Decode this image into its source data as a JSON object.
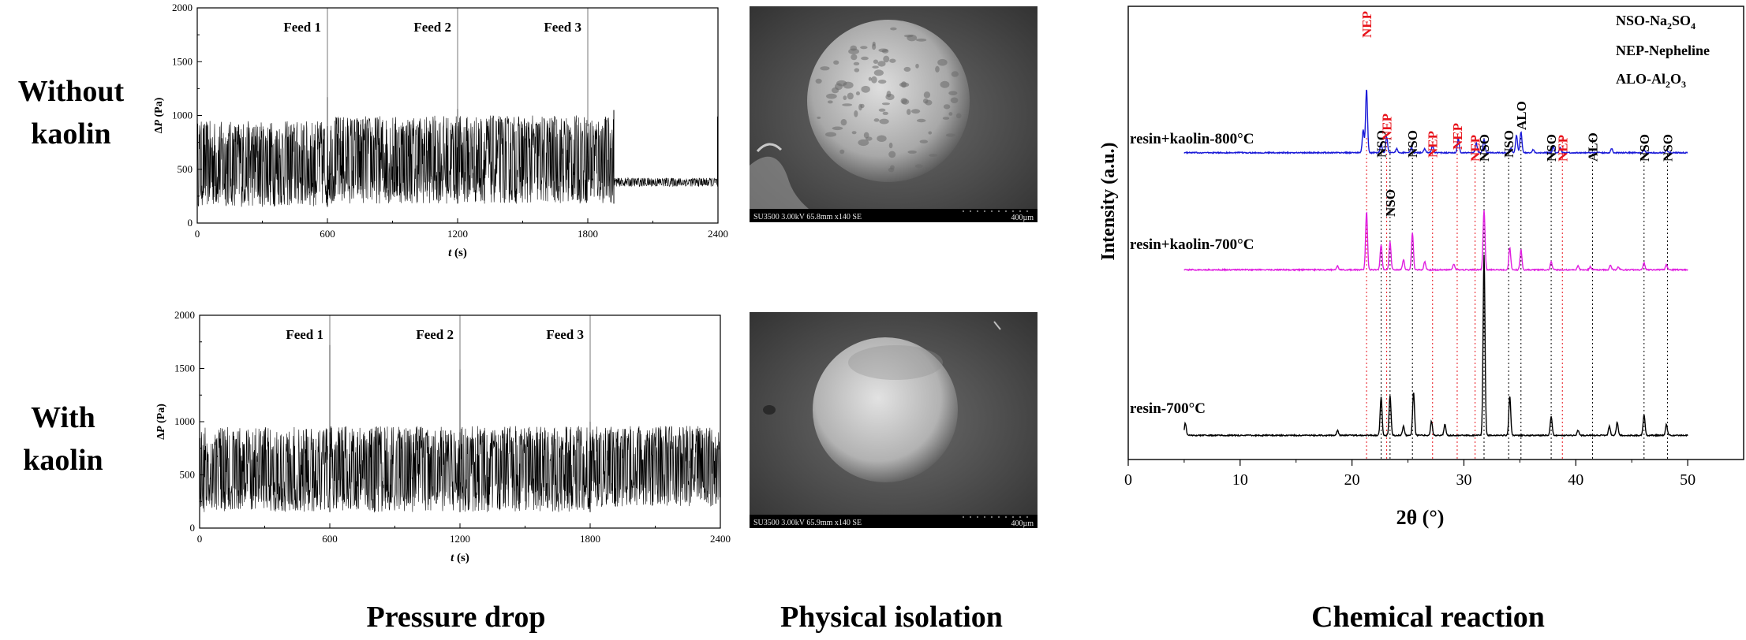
{
  "row_labels": {
    "top": [
      "Without",
      "kaolin"
    ],
    "bottom": [
      "With",
      "kaolin"
    ]
  },
  "section_titles": {
    "pressure": "Pressure drop",
    "physical": "Physical isolation",
    "chemical": "Chemical reaction"
  },
  "sem_images": {
    "top": {
      "caption": "SU3500 3.00kV 65.8mm x140 SE",
      "scale_label": "400µm"
    },
    "bottom": {
      "caption": "SU3500 3.00kV 65.9mm x140 SE",
      "scale_label": "400µm"
    }
  },
  "colors": {
    "pressure_signal": "#000000",
    "xrd_800": "#1a1ad8",
    "xrd_700_kaolin": "#e020e0",
    "xrd_700": "#000000",
    "nep_label": "#e8141c",
    "nep_line": "#e8141c",
    "nso_line": "#000000"
  },
  "chart_data": [
    {
      "id": "pressure-without-kaolin",
      "type": "line",
      "xlabel": "t (s)",
      "ylabel": "ΔP (Pa)",
      "xlim": [
        0,
        2400
      ],
      "ylim": [
        0,
        2000
      ],
      "xticks": [
        0,
        600,
        1200,
        1800,
        2400
      ],
      "yticks": [
        0,
        500,
        1000,
        1500,
        2000
      ],
      "grid": false,
      "feed_markers": [
        {
          "label": "Feed 1",
          "x": 600
        },
        {
          "label": "Feed 2",
          "x": 1200
        },
        {
          "label": "Feed 3",
          "x": 1800
        }
      ],
      "fluctuation_phases": [
        {
          "t_start": 0,
          "t_end": 600,
          "low": 150,
          "high": 950
        },
        {
          "t_start": 600,
          "t_end": 1920,
          "low": 180,
          "high": 1000
        },
        {
          "t_start": 1920,
          "t_end": 2400,
          "low": 340,
          "high": 420
        }
      ],
      "spikes": [
        {
          "x": 600,
          "y": 1170
        },
        {
          "x": 1200,
          "y": 1060
        },
        {
          "x": 1920,
          "y": 1050
        },
        {
          "x": 2398,
          "y": 990
        }
      ]
    },
    {
      "id": "pressure-with-kaolin",
      "type": "line",
      "xlabel": "t (s)",
      "ylabel": "ΔP (Pa)",
      "xlim": [
        0,
        2400
      ],
      "ylim": [
        0,
        2000
      ],
      "xticks": [
        0,
        600,
        1200,
        1800,
        2400
      ],
      "yticks": [
        0,
        500,
        1000,
        1500,
        2000
      ],
      "grid": false,
      "feed_markers": [
        {
          "label": "Feed 1",
          "x": 600
        },
        {
          "label": "Feed 2",
          "x": 1200
        },
        {
          "label": "Feed 3",
          "x": 1800
        }
      ],
      "fluctuation_phases": [
        {
          "t_start": 0,
          "t_end": 600,
          "low": 150,
          "high": 950
        },
        {
          "t_start": 600,
          "t_end": 1800,
          "low": 150,
          "high": 960
        },
        {
          "t_start": 1800,
          "t_end": 2400,
          "low": 200,
          "high": 960
        }
      ],
      "spikes": [
        {
          "x": 600,
          "y": 1720
        },
        {
          "x": 1200,
          "y": 1490
        },
        {
          "x": 1800,
          "y": 1000
        }
      ]
    },
    {
      "id": "xrd-patterns",
      "type": "line",
      "xlabel": "2θ (°)",
      "ylabel": "Intensity (a.u.)",
      "xlim": [
        0,
        55
      ],
      "xticks": [
        0,
        10,
        20,
        30,
        40,
        50
      ],
      "x_minor_step": 5,
      "grid": false,
      "legend": {
        "placement": "top-right",
        "entries": [
          {
            "abbr": "NSO",
            "text": "NSO-Na",
            "sub1": "2",
            "mid": "SO",
            "sub2": "4"
          },
          {
            "abbr": "NEP",
            "text": "NEP-Nepheline"
          },
          {
            "abbr": "ALO",
            "text": "ALO-Al",
            "sub1": "2",
            "mid": "O",
            "sub2": "3"
          }
        ]
      },
      "series": [
        {
          "name": "resin+kaolin-800°C",
          "baseline": 0.9,
          "x_start": 5,
          "x_end": 50,
          "peaks": [
            [
              21.0,
              2.3
            ],
            [
              21.3,
              6.5
            ],
            [
              22.6,
              1.0
            ],
            [
              23.1,
              1.6
            ],
            [
              24.0,
              0.4
            ],
            [
              25.3,
              0.5
            ],
            [
              26.5,
              0.4
            ],
            [
              27.2,
              0.8
            ],
            [
              29.5,
              1.4
            ],
            [
              31.1,
              1.0
            ],
            [
              31.8,
              1.4
            ],
            [
              34.2,
              0.5
            ],
            [
              34.7,
              1.8
            ],
            [
              35.1,
              2.1
            ],
            [
              36.2,
              0.3
            ],
            [
              38.0,
              0.6
            ],
            [
              38.6,
              0.5
            ],
            [
              43.2,
              0.4
            ],
            [
              46.1,
              0.3
            ],
            [
              48.1,
              0.3
            ]
          ]
        },
        {
          "name": "resin+kaolin-700°C",
          "baseline": 1.0,
          "x_start": 5,
          "x_end": 50,
          "peaks": [
            [
              18.7,
              0.4
            ],
            [
              21.3,
              5.8
            ],
            [
              22.6,
              2.5
            ],
            [
              23.4,
              2.8
            ],
            [
              24.6,
              1.0
            ],
            [
              25.4,
              3.7
            ],
            [
              26.5,
              0.8
            ],
            [
              29.1,
              0.6
            ],
            [
              31.8,
              6.0
            ],
            [
              34.1,
              2.2
            ],
            [
              35.1,
              2.0
            ],
            [
              37.8,
              0.8
            ],
            [
              40.2,
              0.4
            ],
            [
              41.3,
              0.3
            ],
            [
              43.1,
              0.5
            ],
            [
              43.8,
              0.3
            ],
            [
              46.1,
              0.7
            ],
            [
              48.1,
              0.5
            ]
          ]
        },
        {
          "name": "resin-700°C",
          "baseline": 0.6,
          "x_start": 5,
          "x_end": 50,
          "peaks": [
            [
              5.1,
              1.2
            ],
            [
              18.7,
              0.5
            ],
            [
              22.6,
              3.8
            ],
            [
              23.4,
              4.0
            ],
            [
              24.6,
              0.9
            ],
            [
              25.5,
              4.3
            ],
            [
              27.1,
              1.4
            ],
            [
              28.3,
              1.1
            ],
            [
              31.8,
              18.0
            ],
            [
              34.1,
              3.9
            ],
            [
              37.8,
              1.9
            ],
            [
              40.2,
              0.5
            ],
            [
              43.0,
              0.9
            ],
            [
              43.7,
              1.3
            ],
            [
              46.1,
              2.1
            ],
            [
              48.1,
              1.1
            ]
          ]
        }
      ],
      "phase_markers": [
        {
          "label": "NEP",
          "phase": "NEP",
          "x": 21.3
        },
        {
          "label": "NSO",
          "phase": "NSO",
          "x": 22.6
        },
        {
          "label": "NEP",
          "phase": "NEP",
          "x": 23.1
        },
        {
          "label": "NSO",
          "phase": "NSO",
          "x": 23.4
        },
        {
          "label": "NSO",
          "phase": "NSO",
          "x": 25.4
        },
        {
          "label": "NEP",
          "phase": "NEP",
          "x": 27.2
        },
        {
          "label": "NEP",
          "phase": "NEP",
          "x": 29.4
        },
        {
          "label": "NEP",
          "phase": "NEP",
          "x": 31.0
        },
        {
          "label": "NSO",
          "phase": "NSO",
          "x": 31.8
        },
        {
          "label": "NSO",
          "phase": "NSO",
          "x": 34.0
        },
        {
          "label": "ALO",
          "phase": "ALO",
          "x": 35.1
        },
        {
          "label": "NSO",
          "phase": "NSO",
          "x": 37.8
        },
        {
          "label": "NEP",
          "phase": "NEP",
          "x": 38.8
        },
        {
          "label": "ALO",
          "phase": "ALO",
          "x": 41.5
        },
        {
          "label": "NSO",
          "phase": "NSO",
          "x": 46.1
        },
        {
          "label": "NSO",
          "phase": "NSO",
          "x": 48.2
        }
      ]
    }
  ]
}
